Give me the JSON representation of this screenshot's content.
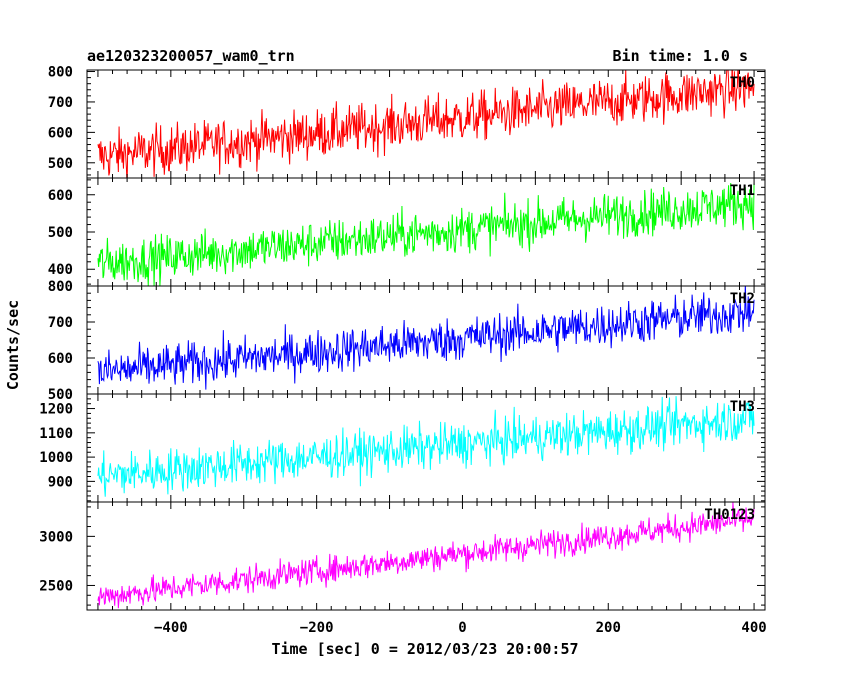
{
  "header": {
    "left_title": "ae120323200057_wam0_trn",
    "right_title": "Bin time: 1.0 s"
  },
  "axes": {
    "xlabel": "Time [sec] 0 = 2012/03/23 20:00:57",
    "ylabel": "Counts/sec"
  },
  "chart_data": [
    {
      "type": "line",
      "name": "TH0",
      "label": "TH0",
      "color": "#ff0000",
      "xlim": [
        -515,
        415
      ],
      "ylim": [
        450,
        805
      ],
      "yticks": [
        500,
        600,
        700,
        800
      ],
      "y_start": 520,
      "y_end": 750,
      "noise": 40
    },
    {
      "type": "line",
      "name": "TH1",
      "label": "TH1",
      "color": "#00ff00",
      "xlim": [
        -515,
        415
      ],
      "ylim": [
        355,
        645
      ],
      "yticks": [
        400,
        500,
        600
      ],
      "y_start": 415,
      "y_end": 580,
      "noise": 30
    },
    {
      "type": "line",
      "name": "TH2",
      "label": "TH2",
      "color": "#0000ff",
      "xlim": [
        -515,
        415
      ],
      "ylim": [
        500,
        800
      ],
      "yticks": [
        500,
        600,
        700,
        800
      ],
      "y_start": 560,
      "y_end": 730,
      "noise": 30
    },
    {
      "type": "line",
      "name": "TH3",
      "label": "TH3",
      "color": "#00ffff",
      "xlim": [
        -515,
        415
      ],
      "ylim": [
        815,
        1260
      ],
      "yticks": [
        900,
        1000,
        1100,
        1200
      ],
      "y_start": 920,
      "y_end": 1160,
      "noise": 45
    },
    {
      "type": "line",
      "name": "TH0123",
      "label": "TH0123",
      "color": "#ff00ff",
      "xlim": [
        -515,
        415
      ],
      "ylim": [
        2250,
        3350
      ],
      "yticks": [
        2500,
        3000
      ],
      "y_start": 2380,
      "y_end": 3180,
      "noise": 70
    }
  ],
  "x_axis": {
    "ticks": [
      -400,
      -200,
      0,
      200,
      400
    ],
    "tick_labels": [
      "−400",
      "−200",
      "0",
      "200",
      "400"
    ],
    "time_range": [
      -500,
      400
    ]
  }
}
